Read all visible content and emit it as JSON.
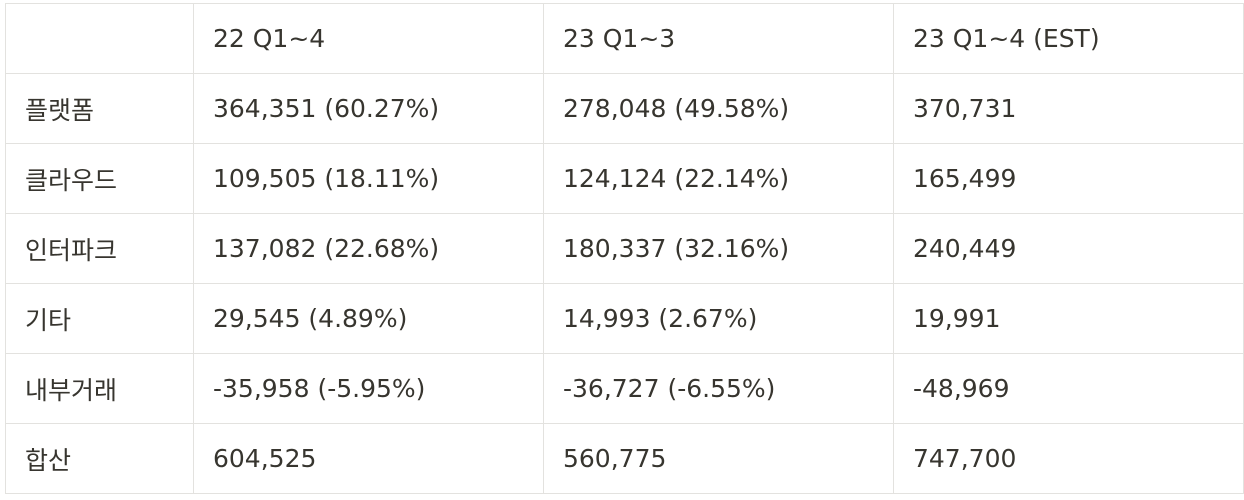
{
  "table": {
    "headers": [
      "",
      "22 Q1~4",
      "23 Q1~3",
      "23 Q1~4 (EST)"
    ],
    "rows": [
      [
        "플랫폼",
        "364,351 (60.27%)",
        "278,048 (49.58%)",
        "370,731"
      ],
      [
        "클라우드",
        "109,505 (18.11%)",
        "124,124 (22.14%)",
        "165,499"
      ],
      [
        "인터파크",
        "137,082 (22.68%)",
        "180,337 (32.16%)",
        "240,449"
      ],
      [
        "기타",
        "29,545 (4.89%)",
        "14,993 (2.67%)",
        "19,991"
      ],
      [
        "내부거래",
        "-35,958 (-5.95%)",
        "-36,727 (-6.55%)",
        "-48,969"
      ],
      [
        "합산",
        "604,525",
        "560,775",
        "747,700"
      ]
    ]
  }
}
